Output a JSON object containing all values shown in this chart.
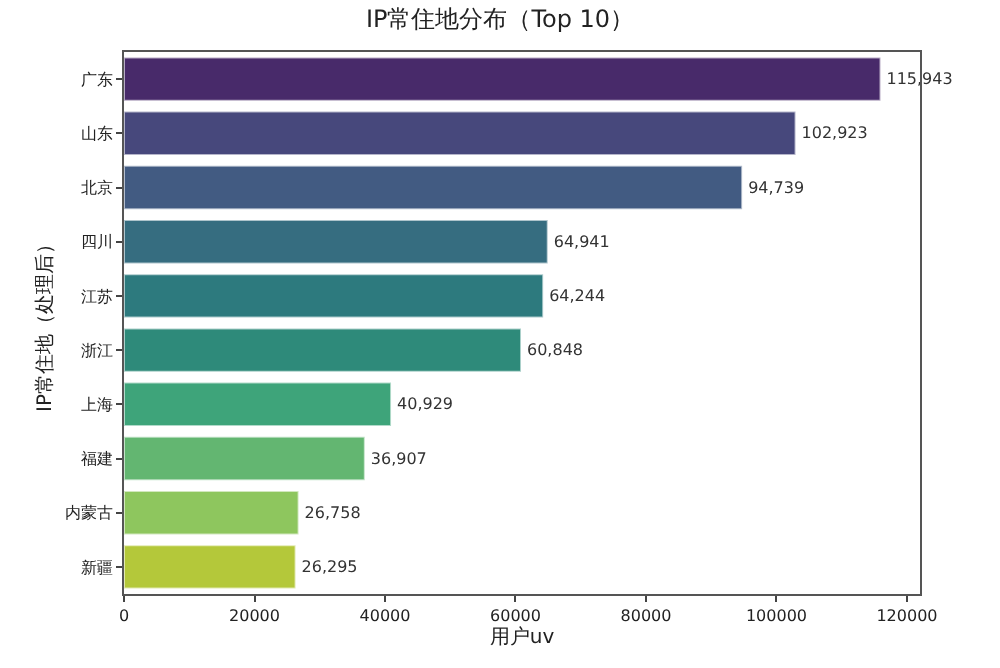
{
  "chart_data": {
    "type": "bar",
    "orientation": "horizontal",
    "title": "IP常住地分布（Top 10）",
    "xlabel": "用户uv",
    "ylabel": "IP常住地（处理后）",
    "categories": [
      "广东",
      "山东",
      "北京",
      "四川",
      "江苏",
      "浙江",
      "上海",
      "福建",
      "内蒙古",
      "新疆"
    ],
    "values": [
      115943,
      102923,
      94739,
      64941,
      64244,
      60848,
      40929,
      36907,
      26758,
      26295
    ],
    "value_labels": [
      "115,943",
      "102,923",
      "94,739",
      "64,941",
      "64,244",
      "60,848",
      "40,929",
      "36,907",
      "26,758",
      "26,295"
    ],
    "colors": [
      "#482a6a",
      "#47487c",
      "#425b82",
      "#366d80",
      "#2d7a7e",
      "#2e8a7a",
      "#3ea47a",
      "#63b671",
      "#8ec65e",
      "#b4c83a"
    ],
    "xlim": [
      0,
      122000
    ],
    "xticks": [
      0,
      20000,
      40000,
      60000,
      80000,
      100000,
      120000
    ]
  }
}
